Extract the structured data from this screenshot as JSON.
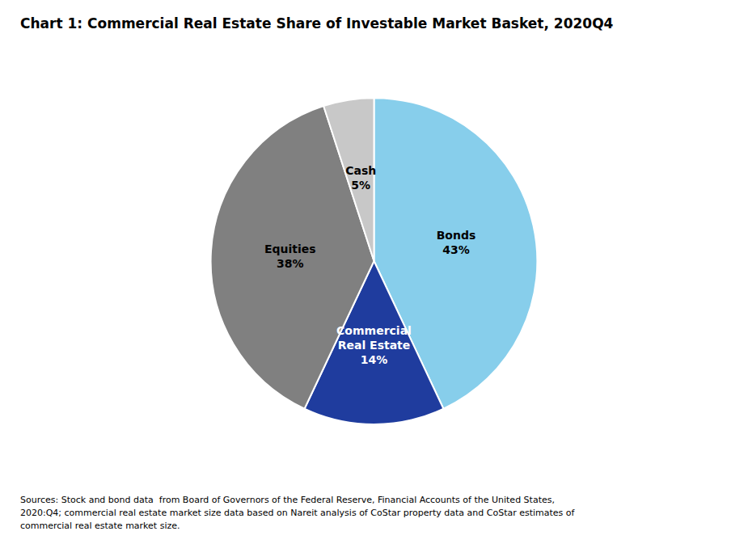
{
  "chart_data": {
    "type": "pie",
    "title": "Chart 1: Commercial Real Estate Share of Investable Market Basket, 2020Q4",
    "values": [
      43,
      14,
      38,
      5
    ],
    "value_labels": [
      "Bonds\n43%",
      "Commercial\nReal Estate\n14%",
      "Equities\n38%",
      "Cash\n5%"
    ],
    "data_labels": true,
    "colors": [
      "#87ceeb",
      "#1f3c9e",
      "#808080",
      "#c8c8c8"
    ],
    "annotations": [
      "Sources: Stock and bond data  from Board of Governors of the Federal Reserve, Financial Accounts of the United States,\n2020:Q4; commercial real estate market size data based on Nareit analysis of CoStar property data and CoStar estimates of\ncommercial real estate market size."
    ],
    "legend": false
  }
}
